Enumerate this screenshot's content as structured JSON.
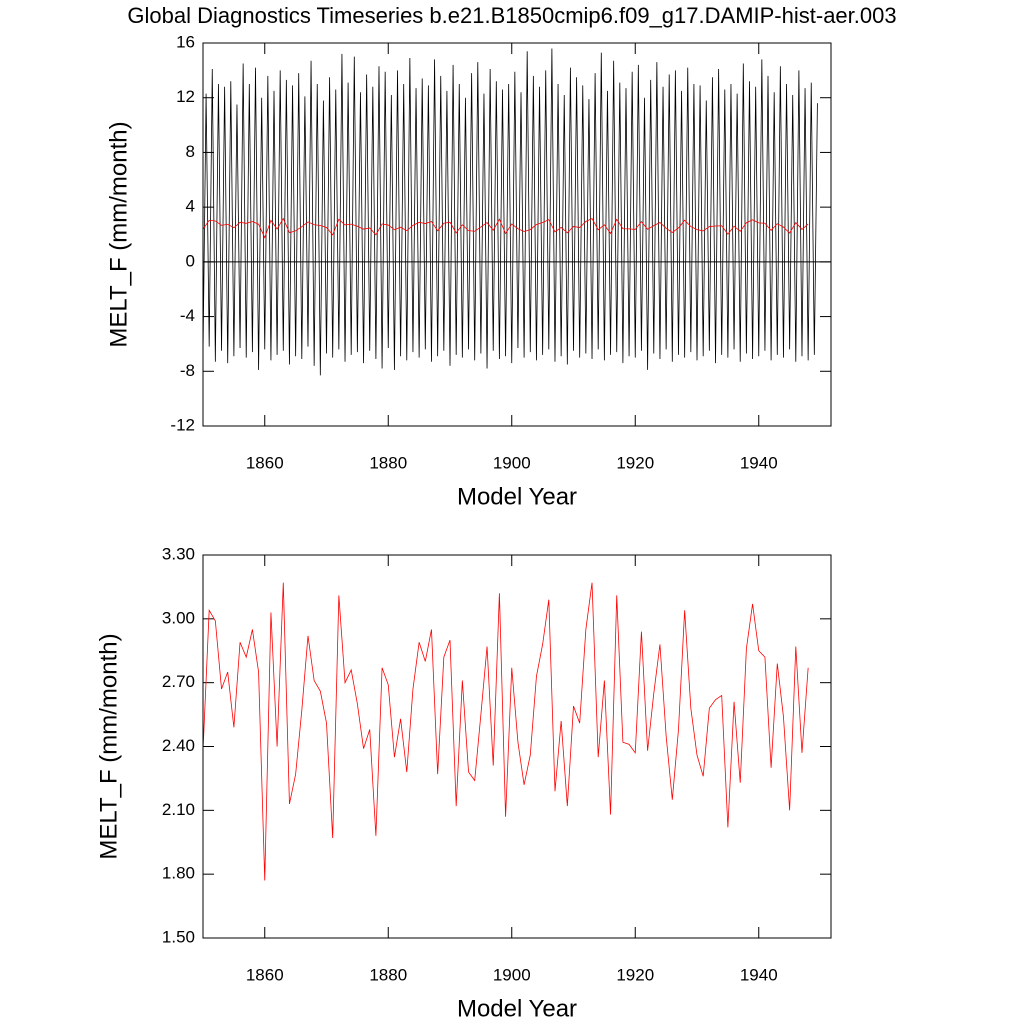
{
  "chart_data": [
    {
      "type": "line",
      "title": "Global Diagnostics Timeseries b.e21.B1850cmip6.f09_g17.DAMIP-hist-aer.003",
      "ylabel": "MELT_F (mm/month)",
      "xlabel": "Model Year",
      "xlim": [
        1850,
        1951.7
      ],
      "xticks": [
        1860,
        1880,
        1900,
        1920,
        1940
      ],
      "ylim": [
        -12,
        16
      ],
      "yticks": [
        -12,
        -8,
        -4,
        0,
        4,
        8,
        12,
        16
      ],
      "reference_line": 0,
      "series": [
        {
          "color": "#000000",
          "x": [
            1850,
            1850.5,
            1851,
            1851.5,
            1852,
            1852.5,
            1853,
            1853.5,
            1854,
            1854.5,
            1855,
            1855.5,
            1856,
            1856.5,
            1857,
            1857.5,
            1858,
            1858.5,
            1859,
            1859.5,
            1860,
            1860.5,
            1861,
            1861.5,
            1862,
            1862.5,
            1863,
            1863.5,
            1864,
            1864.5,
            1865,
            1865.5,
            1866,
            1866.5,
            1867,
            1867.5,
            1868,
            1868.5,
            1869,
            1869.5,
            1870,
            1870.5,
            1871,
            1871.5,
            1872,
            1872.5,
            1873,
            1873.5,
            1874,
            1874.5,
            1875,
            1875.5,
            1876,
            1876.5,
            1877,
            1877.5,
            1878,
            1878.5,
            1879,
            1879.5,
            1880,
            1880.5,
            1881,
            1881.5,
            1882,
            1882.5,
            1883,
            1883.5,
            1884,
            1884.5,
            1885,
            1885.5,
            1886,
            1886.5,
            1887,
            1887.5,
            1888,
            1888.5,
            1889,
            1889.5,
            1890,
            1890.5,
            1891,
            1891.5,
            1892,
            1892.5,
            1893,
            1893.5,
            1894,
            1894.5,
            1895,
            1895.5,
            1896,
            1896.5,
            1897,
            1897.5,
            1898,
            1898.5,
            1899,
            1899.5,
            1900,
            1900.5,
            1901,
            1901.5,
            1902,
            1902.5,
            1903,
            1903.5,
            1904,
            1904.5,
            1905,
            1905.5,
            1906,
            1906.5,
            1907,
            1907.5,
            1908,
            1908.5,
            1909,
            1909.5,
            1910,
            1910.5,
            1911,
            1911.5,
            1912,
            1912.5,
            1913,
            1913.5,
            1914,
            1914.5,
            1915,
            1915.5,
            1916,
            1916.5,
            1917,
            1917.5,
            1918,
            1918.5,
            1919,
            1919.5,
            1920,
            1920.5,
            1921,
            1921.5,
            1922,
            1922.5,
            1923,
            1923.5,
            1924,
            1924.5,
            1925,
            1925.5,
            1926,
            1926.5,
            1927,
            1927.5,
            1928,
            1928.5,
            1929,
            1929.5,
            1930,
            1930.5,
            1931,
            1931.5,
            1932,
            1932.5,
            1933,
            1933.5,
            1934,
            1934.5,
            1935,
            1935.5,
            1936,
            1936.5,
            1937,
            1937.5,
            1938,
            1938.5,
            1939,
            1939.5,
            1940,
            1940.5,
            1941,
            1941.5,
            1942,
            1942.5,
            1943,
            1943.5,
            1944,
            1944.5,
            1945,
            1945.5,
            1946,
            1946.5,
            1947,
            1947.5,
            1948,
            1948.5,
            1949,
            1949.5
          ],
          "values": [
            -6.8,
            12.3,
            -6.2,
            14.1,
            -7.3,
            13.0,
            -6.5,
            12.8,
            -7.4,
            13.2,
            -6.9,
            11.5,
            -6.3,
            14.5,
            -7.0,
            13.0,
            -6.6,
            14.2,
            -7.9,
            12.0,
            -6.4,
            13.6,
            -7.2,
            12.5,
            -6.8,
            14.0,
            -6.5,
            13.3,
            -7.5,
            12.9,
            -6.9,
            13.8,
            -7.1,
            12.1,
            -6.2,
            14.7,
            -7.6,
            13.0,
            -8.3,
            11.8,
            -6.7,
            13.5,
            -7.0,
            12.6,
            -6.4,
            15.2,
            -7.3,
            13.1,
            -6.8,
            15.0,
            -6.6,
            12.4,
            -7.4,
            13.7,
            -6.5,
            12.8,
            -7.1,
            14.3,
            -7.8,
            13.9,
            -6.3,
            12.2,
            -7.9,
            14.0,
            -6.9,
            13.0,
            -7.2,
            14.9,
            -6.6,
            12.7,
            -7.0,
            13.4,
            -6.4,
            12.9,
            -7.3,
            14.8,
            -6.9,
            13.6,
            -6.5,
            12.5,
            -7.6,
            14.4,
            -6.8,
            13.0,
            -7.0,
            12.0,
            -6.4,
            13.8,
            -7.2,
            14.6,
            -6.7,
            12.3,
            -7.8,
            14.1,
            -6.5,
            13.2,
            -7.1,
            12.6,
            -6.9,
            13.0,
            -7.4,
            13.9,
            -6.3,
            12.4,
            -7.0,
            15.4,
            -6.6,
            13.6,
            -7.2,
            12.8,
            -6.8,
            14.0,
            -6.4,
            15.6,
            -7.3,
            13.0,
            -6.9,
            12.2,
            -7.5,
            14.2,
            -6.5,
            13.5,
            -7.0,
            12.9,
            -6.7,
            11.9,
            -7.1,
            13.8,
            -6.4,
            15.3,
            -7.2,
            12.5,
            -6.8,
            14.7,
            -6.6,
            13.1,
            -7.4,
            12.7,
            -6.9,
            13.9,
            -7.0,
            14.4,
            -6.5,
            12.0,
            -7.9,
            13.3,
            -6.7,
            14.6,
            -7.1,
            12.8,
            -6.4,
            13.7,
            -7.3,
            14.0,
            -6.8,
            12.5,
            -7.0,
            14.2,
            -6.6,
            13.0,
            -7.2,
            12.9,
            -6.9,
            11.8,
            -6.5,
            13.5,
            -7.4,
            14.1,
            -6.8,
            12.6,
            -7.0,
            13.0,
            -6.4,
            12.3,
            -7.3,
            14.5,
            -6.7,
            13.2,
            -7.1,
            12.8,
            -6.9,
            14.8,
            -6.5,
            13.6,
            -7.2,
            12.4,
            -6.8,
            14.3,
            -7.0,
            13.0,
            -6.4,
            12.2,
            -7.3,
            14.0,
            -6.9,
            12.7,
            -7.2,
            13.1,
            -6.8,
            11.6
          ]
        },
        {
          "color": "#ff0000",
          "x": [
            1850,
            1851,
            1852,
            1853,
            1854,
            1855,
            1856,
            1857,
            1858,
            1859,
            1860,
            1861,
            1862,
            1863,
            1864,
            1865,
            1866,
            1867,
            1868,
            1869,
            1870,
            1871,
            1872,
            1873,
            1874,
            1875,
            1876,
            1877,
            1878,
            1879,
            1880,
            1881,
            1882,
            1883,
            1884,
            1885,
            1886,
            1887,
            1888,
            1889,
            1890,
            1891,
            1892,
            1893,
            1894,
            1895,
            1896,
            1897,
            1898,
            1899,
            1900,
            1901,
            1902,
            1903,
            1904,
            1905,
            1906,
            1907,
            1908,
            1909,
            1910,
            1911,
            1912,
            1913,
            1914,
            1915,
            1916,
            1917,
            1918,
            1919,
            1920,
            1921,
            1922,
            1923,
            1924,
            1925,
            1926,
            1927,
            1928,
            1929,
            1930,
            1931,
            1932,
            1933,
            1934,
            1935,
            1936,
            1937,
            1938,
            1939,
            1940,
            1941,
            1942,
            1943,
            1944,
            1945,
            1946,
            1947,
            1948
          ],
          "values": [
            2.38,
            3.04,
            2.99,
            2.67,
            2.75,
            2.49,
            2.89,
            2.82,
            2.95,
            2.75,
            1.77,
            3.03,
            2.4,
            3.17,
            2.13,
            2.27,
            2.57,
            2.92,
            2.71,
            2.66,
            2.51,
            1.97,
            3.11,
            2.7,
            2.76,
            2.6,
            2.39,
            2.48,
            1.98,
            2.77,
            2.69,
            2.35,
            2.53,
            2.28,
            2.67,
            2.89,
            2.8,
            2.95,
            2.27,
            2.82,
            2.9,
            2.12,
            2.71,
            2.28,
            2.24,
            2.55,
            2.87,
            2.31,
            3.12,
            2.07,
            2.77,
            2.42,
            2.22,
            2.36,
            2.73,
            2.88,
            3.09,
            2.19,
            2.52,
            2.12,
            2.59,
            2.51,
            2.95,
            3.17,
            2.35,
            2.71,
            2.08,
            3.11,
            2.42,
            2.41,
            2.37,
            2.94,
            2.38,
            2.65,
            2.88,
            2.45,
            2.15,
            2.48,
            3.04,
            2.58,
            2.36,
            2.26,
            2.58,
            2.62,
            2.64,
            2.02,
            2.61,
            2.23,
            2.86,
            3.07,
            2.85,
            2.82,
            2.3,
            2.79,
            2.54,
            2.1,
            2.87,
            2.37,
            2.77
          ]
        }
      ]
    },
    {
      "type": "line",
      "ylabel": "MELT_F (mm/month)",
      "xlabel": "Model Year",
      "xlim": [
        1850,
        1951.7
      ],
      "xticks": [
        1860,
        1880,
        1900,
        1920,
        1940
      ],
      "ylim": [
        1.5,
        3.3
      ],
      "yticks": [
        {
          "value": 1.5,
          "label": "1.50"
        },
        {
          "value": 1.8,
          "label": "1.80"
        },
        {
          "value": 2.1,
          "label": "2.10"
        },
        {
          "value": 2.4,
          "label": "2.40"
        },
        {
          "value": 2.7,
          "label": "2.70"
        },
        {
          "value": 3.0,
          "label": "3.00"
        },
        {
          "value": 3.3,
          "label": "3.30"
        }
      ],
      "series": [
        {
          "color": "#ff0000",
          "x": [
            1850,
            1851,
            1852,
            1853,
            1854,
            1855,
            1856,
            1857,
            1858,
            1859,
            1860,
            1861,
            1862,
            1863,
            1864,
            1865,
            1866,
            1867,
            1868,
            1869,
            1870,
            1871,
            1872,
            1873,
            1874,
            1875,
            1876,
            1877,
            1878,
            1879,
            1880,
            1881,
            1882,
            1883,
            1884,
            1885,
            1886,
            1887,
            1888,
            1889,
            1890,
            1891,
            1892,
            1893,
            1894,
            1895,
            1896,
            1897,
            1898,
            1899,
            1900,
            1901,
            1902,
            1903,
            1904,
            1905,
            1906,
            1907,
            1908,
            1909,
            1910,
            1911,
            1912,
            1913,
            1914,
            1915,
            1916,
            1917,
            1918,
            1919,
            1920,
            1921,
            1922,
            1923,
            1924,
            1925,
            1926,
            1927,
            1928,
            1929,
            1930,
            1931,
            1932,
            1933,
            1934,
            1935,
            1936,
            1937,
            1938,
            1939,
            1940,
            1941,
            1942,
            1943,
            1944,
            1945,
            1946,
            1947,
            1948
          ],
          "values": [
            2.38,
            3.04,
            2.99,
            2.67,
            2.75,
            2.49,
            2.89,
            2.82,
            2.95,
            2.75,
            1.77,
            3.03,
            2.4,
            3.17,
            2.13,
            2.27,
            2.57,
            2.92,
            2.71,
            2.66,
            2.51,
            1.97,
            3.11,
            2.7,
            2.76,
            2.6,
            2.39,
            2.48,
            1.98,
            2.77,
            2.69,
            2.35,
            2.53,
            2.28,
            2.67,
            2.89,
            2.8,
            2.95,
            2.27,
            2.82,
            2.9,
            2.12,
            2.71,
            2.28,
            2.24,
            2.55,
            2.87,
            2.31,
            3.12,
            2.07,
            2.77,
            2.42,
            2.22,
            2.36,
            2.73,
            2.88,
            3.09,
            2.19,
            2.52,
            2.12,
            2.59,
            2.51,
            2.95,
            3.17,
            2.35,
            2.71,
            2.08,
            3.11,
            2.42,
            2.41,
            2.37,
            2.94,
            2.38,
            2.65,
            2.88,
            2.45,
            2.15,
            2.48,
            3.04,
            2.58,
            2.36,
            2.26,
            2.58,
            2.62,
            2.64,
            2.02,
            2.61,
            2.23,
            2.86,
            3.07,
            2.85,
            2.82,
            2.3,
            2.79,
            2.54,
            2.1,
            2.87,
            2.37,
            2.77
          ]
        }
      ]
    }
  ]
}
